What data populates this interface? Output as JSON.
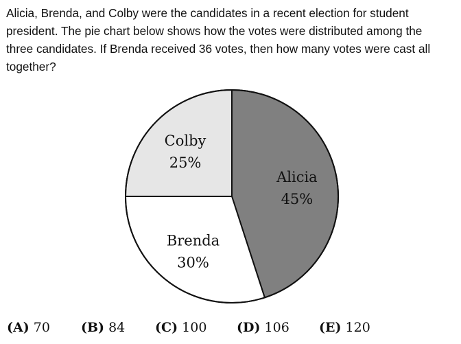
{
  "question": "Alicia, Brenda, and Colby were the candidates in a recent election for student president. The pie chart below shows how the votes were distributed among the three candidates. If Brenda received 36 votes, then how many votes were cast all together?",
  "chart_data": {
    "type": "pie",
    "slices": [
      {
        "name": "Alicia",
        "value": 45,
        "label": "45%",
        "color": "#808080"
      },
      {
        "name": "Brenda",
        "value": 30,
        "label": "30%",
        "color": "#ffffff"
      },
      {
        "name": "Colby",
        "value": 25,
        "label": "25%",
        "color": "#e6e6e6"
      }
    ],
    "start_angle_deg": 0,
    "direction": "clockwise"
  },
  "choices": [
    {
      "letter": "(A)",
      "value": "70"
    },
    {
      "letter": "(B)",
      "value": "84"
    },
    {
      "letter": "(C)",
      "value": "100"
    },
    {
      "letter": "(D)",
      "value": "106"
    },
    {
      "letter": "(E)",
      "value": "120"
    }
  ]
}
